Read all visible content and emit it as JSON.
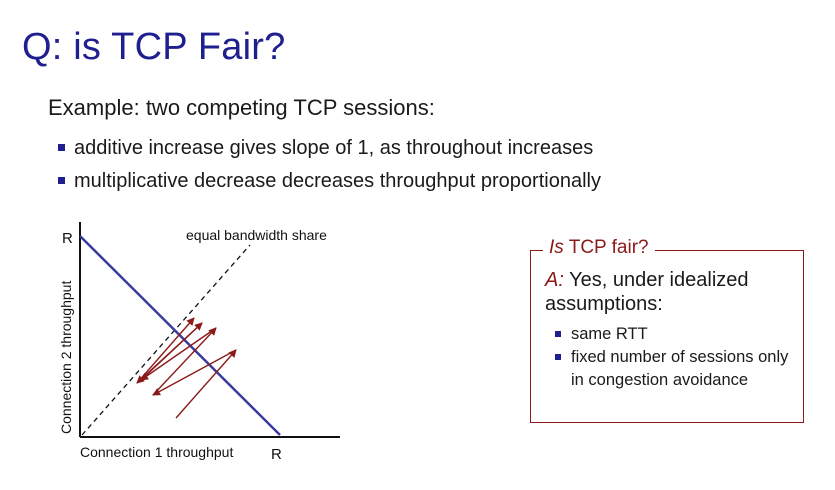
{
  "title": "Q: is TCP Fair?",
  "subtitle": "Example: two competing TCP sessions:",
  "bullets": [
    "additive increase gives slope of 1, as throughout increases",
    "multiplicative decrease decreases throughput proportionally"
  ],
  "diagram": {
    "y_axis_top_label": "R",
    "x_axis_end_label": "R",
    "y_axis_label": "Connection 2 throughput",
    "x_axis_label": "Connection 1 throughput",
    "equal_share_label": "equal bandwidth share"
  },
  "fair_box": {
    "legend_italic": "Is",
    "legend_rest": "TCP fair?",
    "answer_prefix": "A:",
    "answer_text": "Yes, under idealized assumptions:",
    "conditions": [
      "same RTT",
      "fixed number of sessions only in congestion avoidance"
    ]
  },
  "colors": {
    "title": "#1f1f8f",
    "capacity_line": "#3a3aa0",
    "trajectory": "#8b1a1a",
    "box_border": "#8b1a1a"
  }
}
